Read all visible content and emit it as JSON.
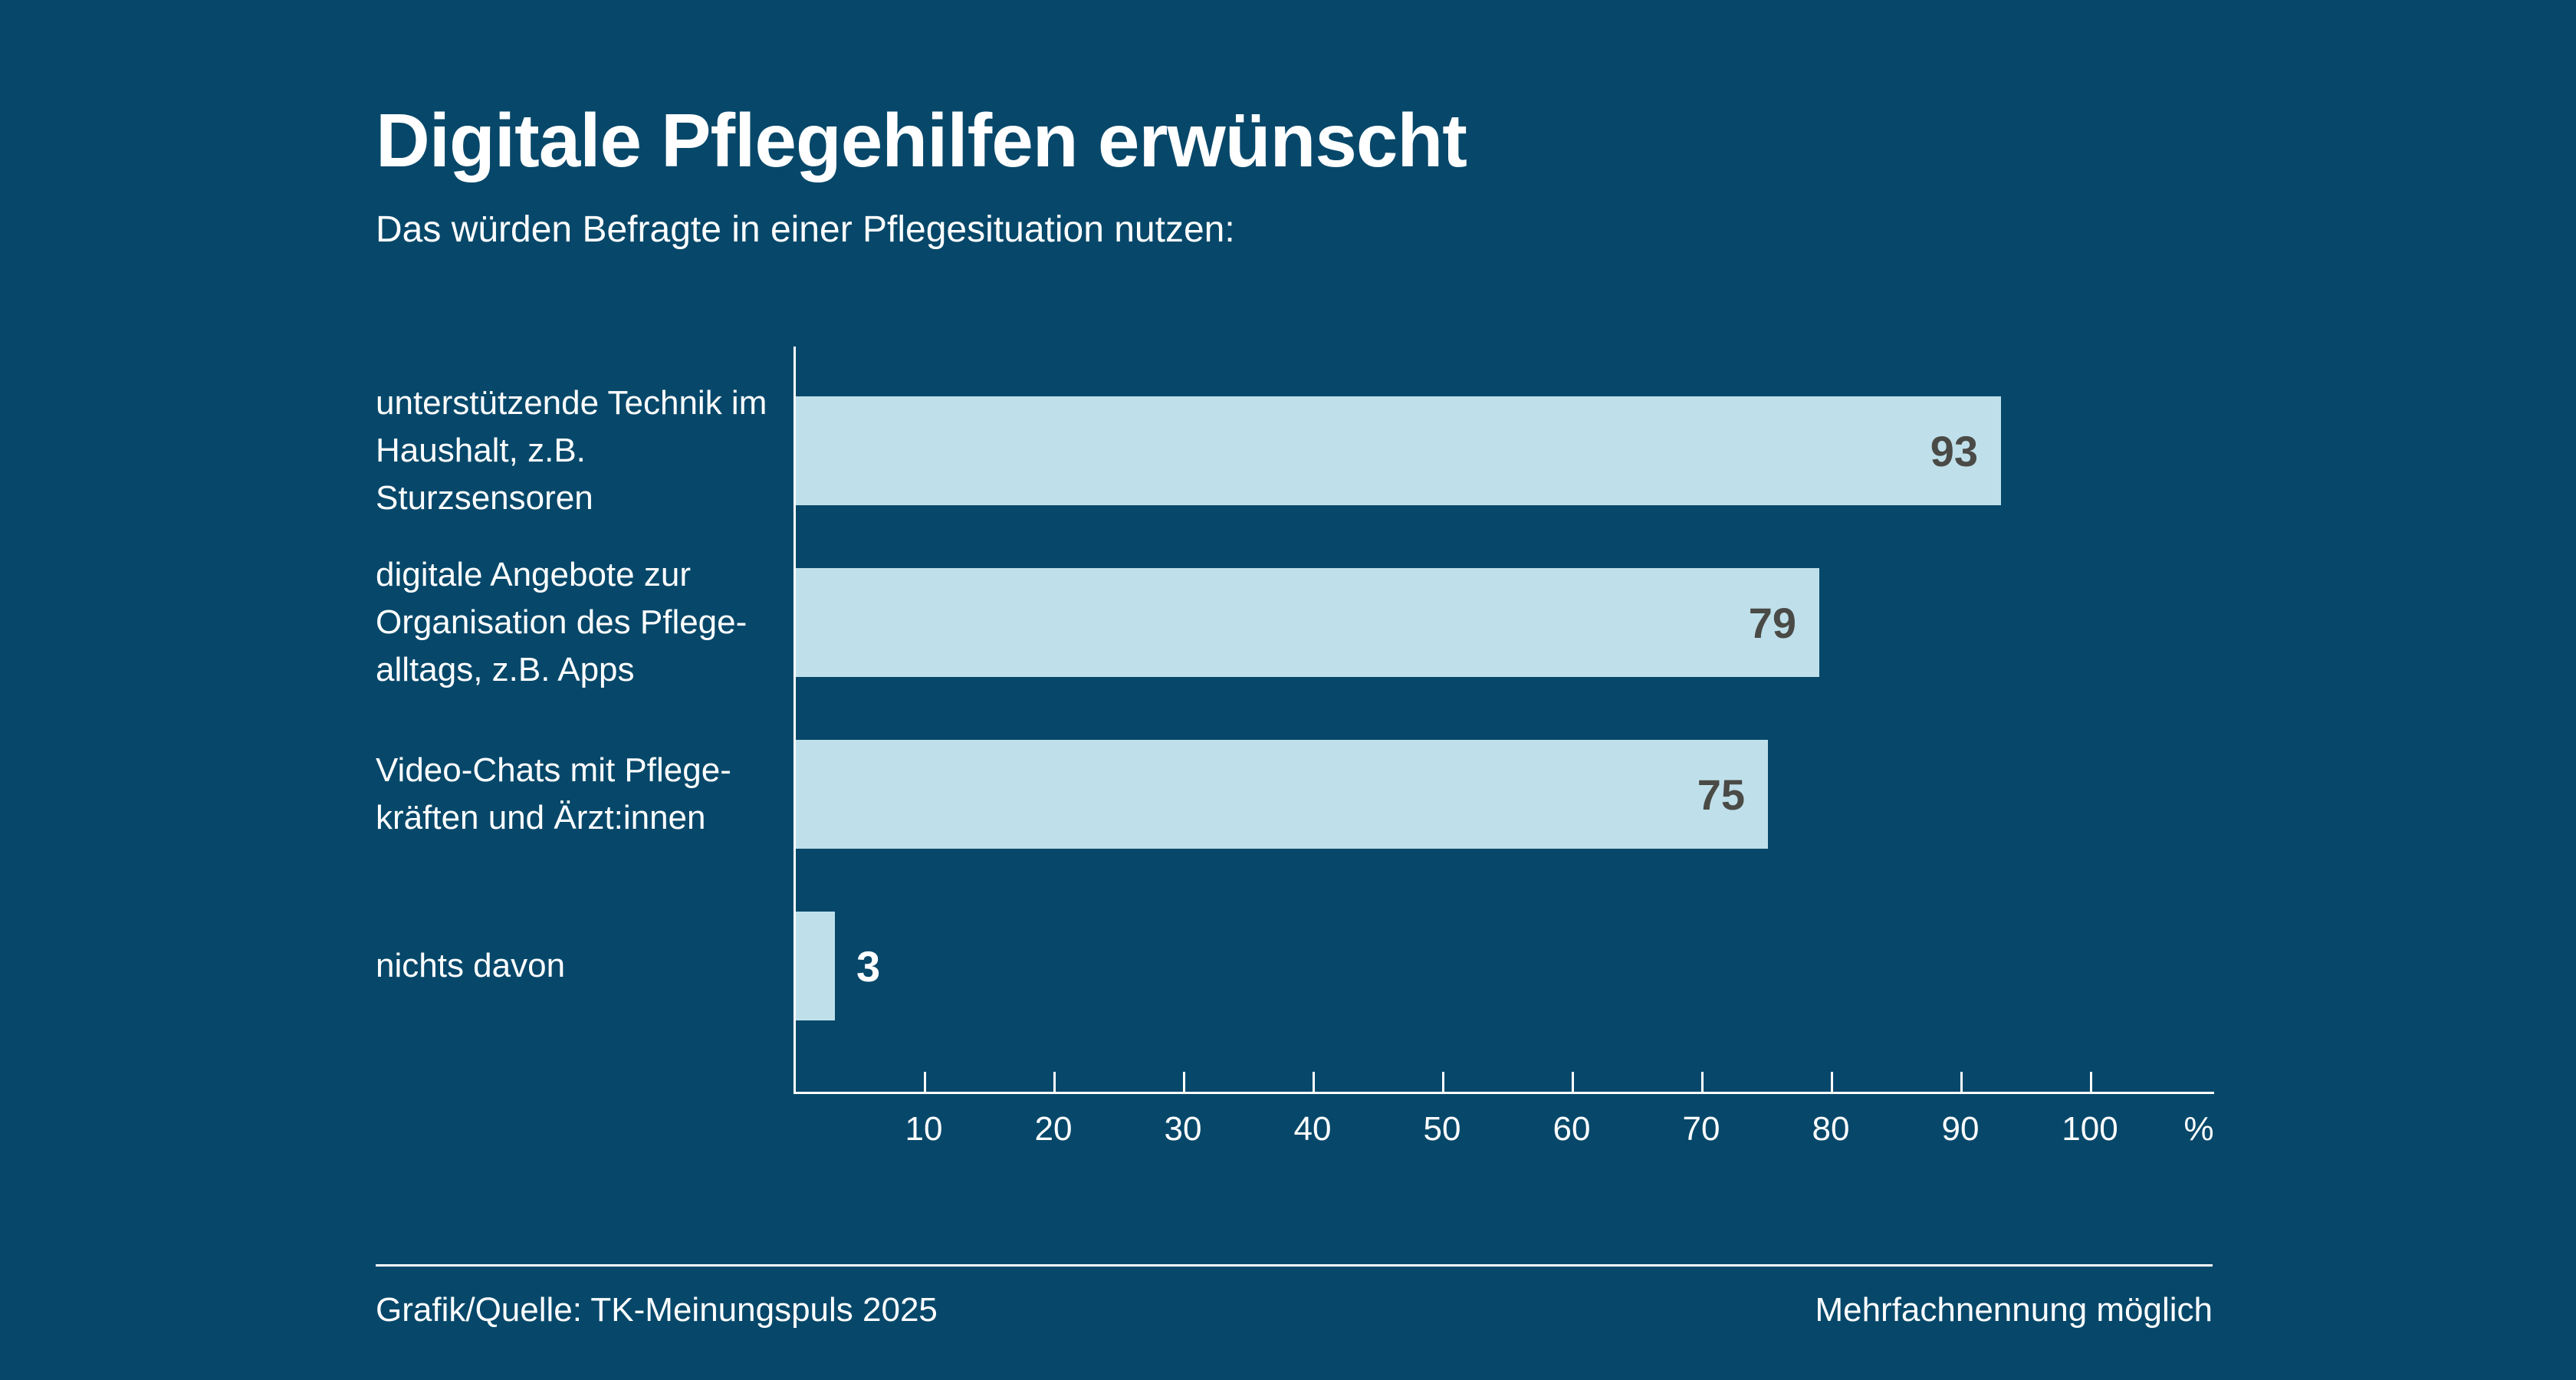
{
  "title": "Digitale Pflegehilfen erwünscht",
  "subtitle": "Das würden Befragte in einer Pflegesituation nutzen:",
  "chart_data": {
    "type": "bar",
    "orientation": "horizontal",
    "categories": [
      "unterstützende Technik im\nHaushalt, z.B. Sturzsensoren",
      "digitale Angebote zur\nOrganisation des Pflege-\nalltags, z.B. Apps",
      "Video-Chats mit Pflege-\nkräften und Ärzt:innen",
      "nichts davon"
    ],
    "values": [
      93,
      79,
      75,
      3
    ],
    "xticks": [
      10,
      20,
      30,
      40,
      50,
      60,
      70,
      80,
      90,
      100
    ],
    "x_axis_unit": "%",
    "xlim": [
      0,
      110
    ],
    "grid": false,
    "legend": false,
    "value_label_placement": "inside-right, outside for small bars"
  },
  "colors": {
    "background": "#07486A",
    "bar": "#BFE0EA",
    "value_label_inside": "#4A4A46",
    "text": "#FFFFFF"
  },
  "footer": {
    "source": "Grafik/Quelle: TK-Meinungspuls 2025",
    "note": "Mehrfachnennung möglich"
  }
}
